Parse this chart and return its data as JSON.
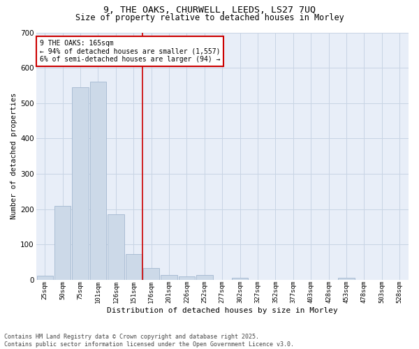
{
  "title_line1": "9, THE OAKS, CHURWELL, LEEDS, LS27 7UQ",
  "title_line2": "Size of property relative to detached houses in Morley",
  "xlabel": "Distribution of detached houses by size in Morley",
  "ylabel": "Number of detached properties",
  "categories": [
    "25sqm",
    "50sqm",
    "75sqm",
    "101sqm",
    "126sqm",
    "151sqm",
    "176sqm",
    "201sqm",
    "226sqm",
    "252sqm",
    "277sqm",
    "302sqm",
    "327sqm",
    "352sqm",
    "377sqm",
    "403sqm",
    "428sqm",
    "453sqm",
    "478sqm",
    "503sqm",
    "528sqm"
  ],
  "values": [
    12,
    210,
    545,
    560,
    185,
    73,
    33,
    13,
    9,
    13,
    0,
    5,
    0,
    0,
    0,
    0,
    0,
    5,
    0,
    0,
    0
  ],
  "bar_color": "#ccd9e8",
  "bar_edge_color": "#aabdd4",
  "grid_color": "#c8d4e4",
  "background_color": "#e8eef8",
  "annotation_text": "9 THE OAKS: 165sqm\n← 94% of detached houses are smaller (1,557)\n6% of semi-detached houses are larger (94) →",
  "annotation_box_color": "#ffffff",
  "annotation_box_edge": "#cc0000",
  "footer_line1": "Contains HM Land Registry data © Crown copyright and database right 2025.",
  "footer_line2": "Contains public sector information licensed under the Open Government Licence v3.0.",
  "ylim": [
    0,
    700
  ],
  "yticks": [
    0,
    100,
    200,
    300,
    400,
    500,
    600,
    700
  ],
  "red_line_x": 5.5,
  "title1_fontsize": 9.5,
  "title2_fontsize": 8.5,
  "ylabel_fontsize": 7.5,
  "xlabel_fontsize": 8.0,
  "xtick_fontsize": 6.5,
  "ytick_fontsize": 7.5,
  "annot_fontsize": 7.0,
  "footer_fontsize": 6.0
}
